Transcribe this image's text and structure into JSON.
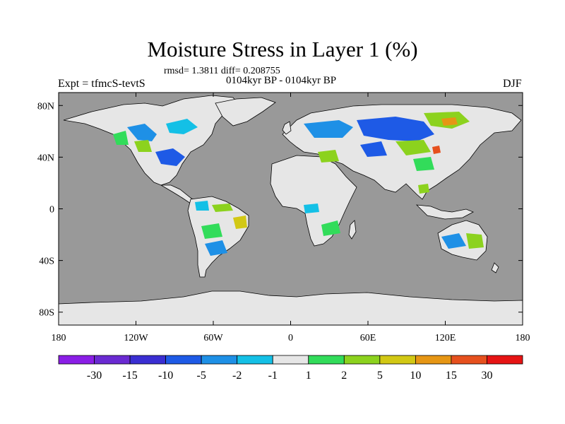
{
  "figure": {
    "title": "Moisture Stress in Layer 1 (%)",
    "stats": "rmsd= 1.3811 diff= 0.208755",
    "period": "0104kyr BP - 0104kyr BP",
    "experiment": "Expt = tfmcS-tevtS",
    "season": "DJF"
  },
  "axes": {
    "x_ticks": [
      {
        "value": -180,
        "label": "180"
      },
      {
        "value": -120,
        "label": "120W"
      },
      {
        "value": -60,
        "label": "60W"
      },
      {
        "value": 0,
        "label": "0"
      },
      {
        "value": 60,
        "label": "60E"
      },
      {
        "value": 120,
        "label": "120E"
      },
      {
        "value": 180,
        "label": "180"
      }
    ],
    "y_ticks": [
      {
        "value": 80,
        "label": "80N"
      },
      {
        "value": 40,
        "label": "40N"
      },
      {
        "value": 0,
        "label": "0"
      },
      {
        "value": -40,
        "label": "40S"
      },
      {
        "value": -80,
        "label": "80S"
      }
    ],
    "lon_range": [
      -180,
      180
    ],
    "lat_range": [
      -90,
      90
    ]
  },
  "colors": {
    "ocean": "#999999",
    "land_neutral": "#e6e6e6"
  },
  "colorbar": {
    "colors": [
      "#8a1ee6",
      "#6a2ad2",
      "#3a2ed2",
      "#1e5ae6",
      "#1e90e6",
      "#14c0e6",
      "#e6e6e6",
      "#32dc5a",
      "#8cd21e",
      "#d2c814",
      "#e69614",
      "#e6501e",
      "#e61414"
    ],
    "labels": [
      "-30",
      "-15",
      "-10",
      "-5",
      "-2",
      "-1",
      "1",
      "2",
      "5",
      "10",
      "15",
      "30"
    ]
  }
}
